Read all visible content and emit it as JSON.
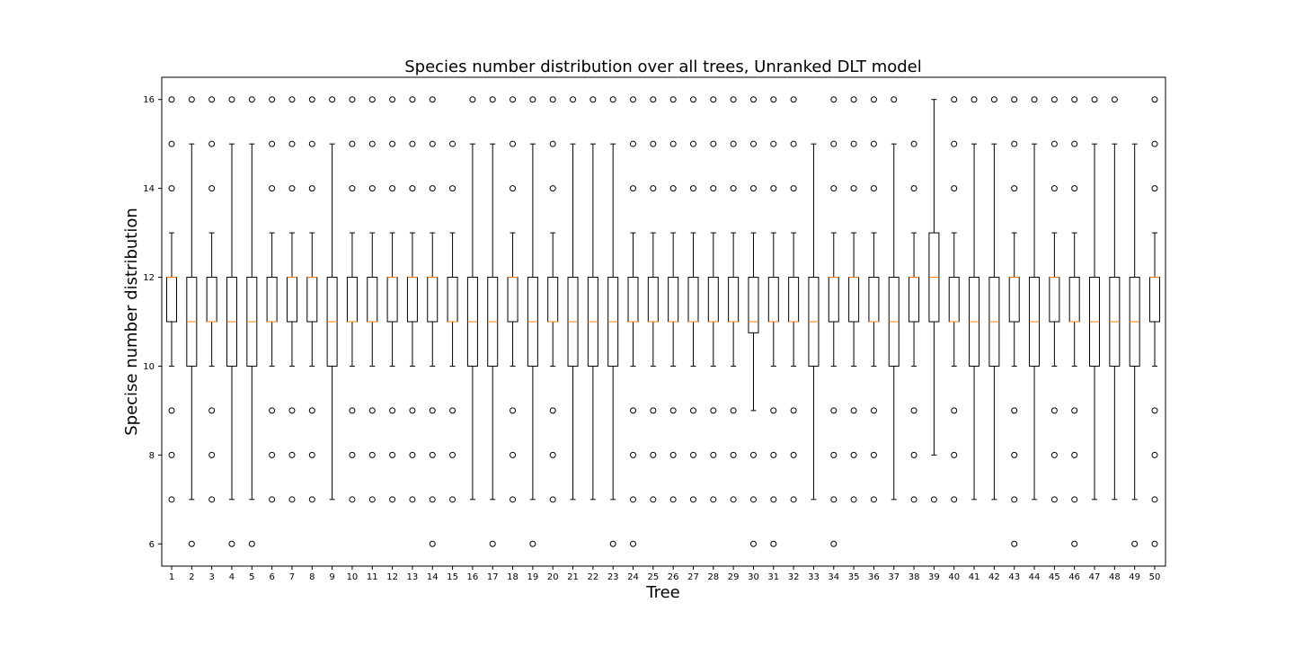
{
  "chart_data": {
    "type": "box",
    "title": "Species number distribution over all trees, Unranked DLT model",
    "xlabel": "Tree",
    "ylabel": "Specise number distribution",
    "ylim": [
      5.5,
      16.5
    ],
    "yticks": [
      6,
      8,
      10,
      12,
      14,
      16
    ],
    "categories": [
      "1",
      "2",
      "3",
      "4",
      "5",
      "6",
      "7",
      "8",
      "9",
      "10",
      "11",
      "12",
      "13",
      "14",
      "15",
      "16",
      "17",
      "18",
      "19",
      "20",
      "21",
      "22",
      "23",
      "24",
      "25",
      "26",
      "27",
      "28",
      "29",
      "30",
      "31",
      "32",
      "33",
      "34",
      "35",
      "36",
      "37",
      "38",
      "39",
      "40",
      "41",
      "42",
      "43",
      "44",
      "45",
      "46",
      "47",
      "48",
      "49",
      "50"
    ],
    "median_color": "#ff7f0e",
    "box_color": "#000000",
    "boxes": [
      {
        "q1": 11,
        "median": 12,
        "q3": 12,
        "whislo": 10,
        "whishi": 13,
        "fliers": [
          7,
          8,
          9,
          14,
          15,
          16
        ]
      },
      {
        "q1": 10,
        "median": 11,
        "q3": 12,
        "whislo": 7,
        "whishi": 15,
        "fliers": [
          6,
          16
        ]
      },
      {
        "q1": 11,
        "median": 11,
        "q3": 12,
        "whislo": 10,
        "whishi": 13,
        "fliers": [
          7,
          8,
          9,
          14,
          15,
          16
        ]
      },
      {
        "q1": 10,
        "median": 11,
        "q3": 12,
        "whislo": 7,
        "whishi": 15,
        "fliers": [
          6,
          16
        ]
      },
      {
        "q1": 10,
        "median": 11,
        "q3": 12,
        "whislo": 7,
        "whishi": 15,
        "fliers": [
          6,
          16
        ]
      },
      {
        "q1": 11,
        "median": 11,
        "q3": 12,
        "whislo": 10,
        "whishi": 13,
        "fliers": [
          7,
          8,
          9,
          14,
          15,
          16
        ]
      },
      {
        "q1": 11,
        "median": 12,
        "q3": 12,
        "whislo": 10,
        "whishi": 13,
        "fliers": [
          7,
          8,
          9,
          14,
          15,
          16
        ]
      },
      {
        "q1": 11,
        "median": 12,
        "q3": 12,
        "whislo": 10,
        "whishi": 13,
        "fliers": [
          7,
          8,
          9,
          14,
          15,
          16
        ]
      },
      {
        "q1": 10,
        "median": 11,
        "q3": 12,
        "whislo": 7,
        "whishi": 15,
        "fliers": [
          16
        ]
      },
      {
        "q1": 11,
        "median": 11,
        "q3": 12,
        "whislo": 10,
        "whishi": 13,
        "fliers": [
          7,
          8,
          9,
          14,
          15,
          16
        ]
      },
      {
        "q1": 11,
        "median": 11,
        "q3": 12,
        "whislo": 10,
        "whishi": 13,
        "fliers": [
          7,
          8,
          9,
          14,
          15,
          16
        ]
      },
      {
        "q1": 11,
        "median": 12,
        "q3": 12,
        "whislo": 10,
        "whishi": 13,
        "fliers": [
          7,
          8,
          9,
          14,
          15,
          16
        ]
      },
      {
        "q1": 11,
        "median": 12,
        "q3": 12,
        "whislo": 10,
        "whishi": 13,
        "fliers": [
          7,
          8,
          9,
          14,
          15,
          16
        ]
      },
      {
        "q1": 11,
        "median": 12,
        "q3": 12,
        "whislo": 10,
        "whishi": 13,
        "fliers": [
          6,
          7,
          8,
          9,
          14,
          15,
          16
        ]
      },
      {
        "q1": 11,
        "median": 11,
        "q3": 12,
        "whislo": 10,
        "whishi": 13,
        "fliers": [
          7,
          8,
          9,
          14,
          15
        ]
      },
      {
        "q1": 10,
        "median": 11,
        "q3": 12,
        "whislo": 7,
        "whishi": 15,
        "fliers": [
          16
        ]
      },
      {
        "q1": 10,
        "median": 11,
        "q3": 12,
        "whislo": 7,
        "whishi": 15,
        "fliers": [
          6,
          16
        ]
      },
      {
        "q1": 11,
        "median": 12,
        "q3": 12,
        "whislo": 10,
        "whishi": 13,
        "fliers": [
          7,
          8,
          9,
          14,
          15,
          16
        ]
      },
      {
        "q1": 10,
        "median": 11,
        "q3": 12,
        "whislo": 7,
        "whishi": 15,
        "fliers": [
          6,
          16
        ]
      },
      {
        "q1": 11,
        "median": 11,
        "q3": 12,
        "whislo": 10,
        "whishi": 13,
        "fliers": [
          7,
          8,
          9,
          14,
          15,
          16
        ]
      },
      {
        "q1": 10,
        "median": 11,
        "q3": 12,
        "whislo": 7,
        "whishi": 15,
        "fliers": [
          16
        ]
      },
      {
        "q1": 10,
        "median": 11,
        "q3": 12,
        "whislo": 7,
        "whishi": 15,
        "fliers": [
          16
        ]
      },
      {
        "q1": 10,
        "median": 11,
        "q3": 12,
        "whislo": 7,
        "whishi": 15,
        "fliers": [
          6,
          16
        ]
      },
      {
        "q1": 11,
        "median": 11,
        "q3": 12,
        "whislo": 10,
        "whishi": 13,
        "fliers": [
          6,
          7,
          8,
          9,
          14,
          15,
          16
        ]
      },
      {
        "q1": 11,
        "median": 11,
        "q3": 12,
        "whislo": 10,
        "whishi": 13,
        "fliers": [
          7,
          8,
          9,
          14,
          15,
          16
        ]
      },
      {
        "q1": 11,
        "median": 11,
        "q3": 12,
        "whislo": 10,
        "whishi": 13,
        "fliers": [
          7,
          8,
          9,
          14,
          15,
          16
        ]
      },
      {
        "q1": 11,
        "median": 11,
        "q3": 12,
        "whislo": 10,
        "whishi": 13,
        "fliers": [
          7,
          8,
          9,
          14,
          15,
          16
        ]
      },
      {
        "q1": 11,
        "median": 11,
        "q3": 12,
        "whislo": 10,
        "whishi": 13,
        "fliers": [
          7,
          8,
          9,
          14,
          15,
          16
        ]
      },
      {
        "q1": 11,
        "median": 11,
        "q3": 12,
        "whislo": 10,
        "whishi": 13,
        "fliers": [
          7,
          8,
          9,
          14,
          15,
          16
        ]
      },
      {
        "q1": 10.75,
        "median": 11,
        "q3": 12,
        "whislo": 9,
        "whishi": 13,
        "fliers": [
          6,
          7,
          8,
          14,
          15,
          16
        ]
      },
      {
        "q1": 11,
        "median": 11,
        "q3": 12,
        "whislo": 10,
        "whishi": 13,
        "fliers": [
          6,
          7,
          8,
          9,
          14,
          15,
          16
        ]
      },
      {
        "q1": 11,
        "median": 11,
        "q3": 12,
        "whislo": 10,
        "whishi": 13,
        "fliers": [
          7,
          8,
          9,
          14,
          15,
          16
        ]
      },
      {
        "q1": 10,
        "median": 11,
        "q3": 12,
        "whislo": 7,
        "whishi": 15,
        "fliers": []
      },
      {
        "q1": 11,
        "median": 12,
        "q3": 12,
        "whislo": 10,
        "whishi": 13,
        "fliers": [
          6,
          7,
          8,
          9,
          14,
          15,
          16
        ]
      },
      {
        "q1": 11,
        "median": 12,
        "q3": 12,
        "whislo": 10,
        "whishi": 13,
        "fliers": [
          7,
          8,
          9,
          14,
          15,
          16
        ]
      },
      {
        "q1": 11,
        "median": 11,
        "q3": 12,
        "whislo": 10,
        "whishi": 13,
        "fliers": [
          7,
          8,
          9,
          14,
          15,
          16
        ]
      },
      {
        "q1": 10,
        "median": 11,
        "q3": 12,
        "whislo": 7,
        "whishi": 15,
        "fliers": [
          16
        ]
      },
      {
        "q1": 11,
        "median": 12,
        "q3": 12,
        "whislo": 10,
        "whishi": 13,
        "fliers": [
          7,
          8,
          9,
          14,
          15
        ]
      },
      {
        "q1": 11,
        "median": 12,
        "q3": 13,
        "whislo": 8,
        "whishi": 16,
        "fliers": [
          7
        ]
      },
      {
        "q1": 11,
        "median": 11,
        "q3": 12,
        "whislo": 10,
        "whishi": 13,
        "fliers": [
          7,
          8,
          9,
          14,
          15,
          16
        ]
      },
      {
        "q1": 10,
        "median": 11,
        "q3": 12,
        "whislo": 7,
        "whishi": 15,
        "fliers": [
          16
        ]
      },
      {
        "q1": 10,
        "median": 11,
        "q3": 12,
        "whislo": 7,
        "whishi": 15,
        "fliers": [
          16
        ]
      },
      {
        "q1": 11,
        "median": 12,
        "q3": 12,
        "whislo": 10,
        "whishi": 13,
        "fliers": [
          6,
          7,
          8,
          9,
          14,
          15,
          16
        ]
      },
      {
        "q1": 10,
        "median": 11,
        "q3": 12,
        "whislo": 7,
        "whishi": 15,
        "fliers": [
          16
        ]
      },
      {
        "q1": 11,
        "median": 12,
        "q3": 12,
        "whislo": 10,
        "whishi": 13,
        "fliers": [
          7,
          8,
          9,
          14,
          15,
          16
        ]
      },
      {
        "q1": 11,
        "median": 11,
        "q3": 12,
        "whislo": 10,
        "whishi": 13,
        "fliers": [
          6,
          7,
          8,
          9,
          14,
          15,
          16
        ]
      },
      {
        "q1": 10,
        "median": 11,
        "q3": 12,
        "whislo": 7,
        "whishi": 15,
        "fliers": [
          16
        ]
      },
      {
        "q1": 10,
        "median": 11,
        "q3": 12,
        "whislo": 7,
        "whishi": 15,
        "fliers": [
          16
        ]
      },
      {
        "q1": 10,
        "median": 11,
        "q3": 12,
        "whislo": 7,
        "whishi": 15,
        "fliers": [
          6
        ]
      },
      {
        "q1": 11,
        "median": 12,
        "q3": 12,
        "whislo": 10,
        "whishi": 13,
        "fliers": [
          6,
          7,
          8,
          9,
          14,
          15,
          16
        ]
      }
    ]
  }
}
